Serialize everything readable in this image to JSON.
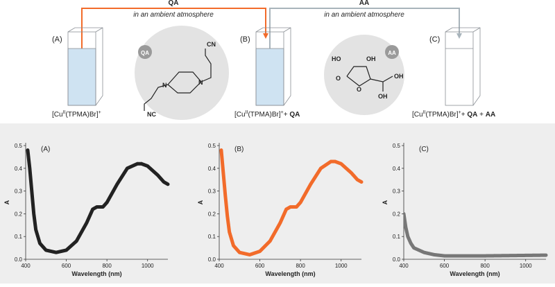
{
  "diagram": {
    "arrows": [
      {
        "reagent": "QA",
        "condition": "in an ambient atmosphere"
      },
      {
        "reagent": "AA",
        "condition": "in an ambient atmosphere"
      }
    ],
    "cuvettes": [
      {
        "tag": "(A)",
        "additions": []
      },
      {
        "tag": "(B)",
        "additions": [
          {
            "sep": "+ ",
            "name": "QA"
          }
        ]
      },
      {
        "tag": "(C)",
        "additions": [
          {
            "sep": "+ ",
            "name": "QA"
          },
          {
            "sep": " + ",
            "name": "AA"
          }
        ]
      }
    ],
    "formula": {
      "metal": "[Cu",
      "oxidation": "II",
      "ligand": "(TPMA)Br]",
      "charge": "+"
    },
    "molecules": [
      {
        "badge": "QA",
        "atoms": [
          "CN",
          "N",
          "N",
          "NC"
        ]
      },
      {
        "badge": "AA",
        "atoms": [
          "HO",
          "OH",
          "O",
          "O",
          "OH",
          "OH"
        ]
      }
    ]
  },
  "chart_data": [
    {
      "type": "line",
      "title": "(A)",
      "xlabel": "Wavelength (nm)",
      "ylabel": "A",
      "color": "#222222",
      "x": [
        410,
        420,
        430,
        440,
        450,
        470,
        500,
        550,
        600,
        650,
        700,
        730,
        750,
        780,
        800,
        850,
        900,
        950,
        970,
        1000,
        1050,
        1080,
        1100
      ],
      "values": [
        0.48,
        0.4,
        0.3,
        0.2,
        0.13,
        0.07,
        0.04,
        0.03,
        0.04,
        0.08,
        0.16,
        0.22,
        0.23,
        0.23,
        0.25,
        0.33,
        0.4,
        0.42,
        0.42,
        0.41,
        0.37,
        0.34,
        0.33
      ],
      "xlim": [
        400,
        1100
      ],
      "ylim": [
        0,
        0.5
      ],
      "xticks": [
        400,
        600,
        800,
        1000
      ],
      "yticks": [
        {
          "value": 0,
          "label": "0.0"
        },
        0.1,
        0.2,
        0.3,
        0.4,
        0.5
      ]
    },
    {
      "type": "line",
      "title": "(B)",
      "xlabel": "Wavelength (nm)",
      "ylabel": "A",
      "color": "#f26b2a",
      "x": [
        410,
        420,
        430,
        440,
        450,
        470,
        500,
        550,
        600,
        650,
        700,
        730,
        750,
        780,
        800,
        850,
        900,
        950,
        970,
        1000,
        1050,
        1080,
        1100
      ],
      "values": [
        0.48,
        0.38,
        0.28,
        0.19,
        0.12,
        0.06,
        0.03,
        0.02,
        0.035,
        0.08,
        0.16,
        0.22,
        0.23,
        0.23,
        0.25,
        0.33,
        0.4,
        0.43,
        0.43,
        0.42,
        0.38,
        0.35,
        0.34
      ],
      "xlim": [
        400,
        1100
      ],
      "ylim": [
        0,
        0.5
      ],
      "xticks": [
        400,
        600,
        800,
        1000
      ],
      "yticks": [
        {
          "value": 0,
          "label": "0.0"
        },
        0.1,
        0.2,
        0.3,
        0.4,
        0.5
      ]
    },
    {
      "type": "line",
      "title": "(C)",
      "xlabel": "Wavelength (nm)",
      "ylabel": "A",
      "color": "#777777",
      "x": [
        400,
        410,
        420,
        435,
        450,
        475,
        500,
        550,
        600,
        700,
        800,
        900,
        1000,
        1100
      ],
      "values": [
        0.2,
        0.14,
        0.1,
        0.07,
        0.05,
        0.04,
        0.03,
        0.02,
        0.015,
        0.015,
        0.015,
        0.016,
        0.017,
        0.018
      ],
      "xlim": [
        400,
        1100
      ],
      "ylim": [
        0,
        0.5
      ],
      "xticks": [
        400,
        600,
        800,
        1000
      ],
      "yticks": [
        {
          "value": 0,
          "label": "0.0"
        },
        0.1,
        0.2,
        0.3,
        0.4,
        0.5
      ]
    }
  ]
}
